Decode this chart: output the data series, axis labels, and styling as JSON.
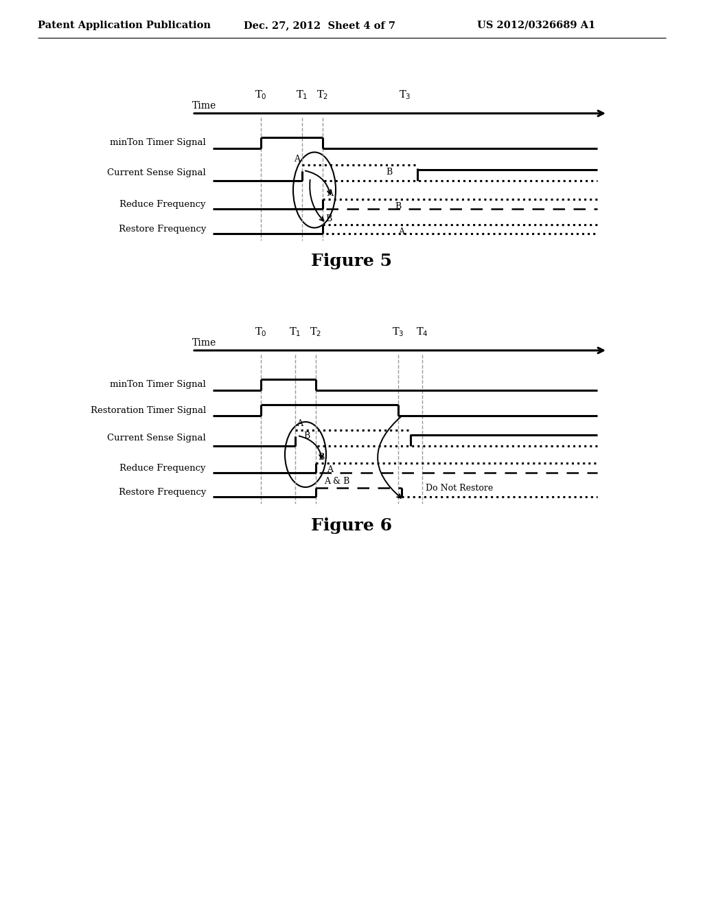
{
  "header_left": "Patent Application Publication",
  "header_mid": "Dec. 27, 2012  Sheet 4 of 7",
  "header_right": "US 2012/0326689 A1",
  "fig5_title": "Figure 5",
  "fig6_title": "Figure 6",
  "bg_color": "#ffffff",
  "line_color": "#000000",
  "gray_color": "#999999"
}
